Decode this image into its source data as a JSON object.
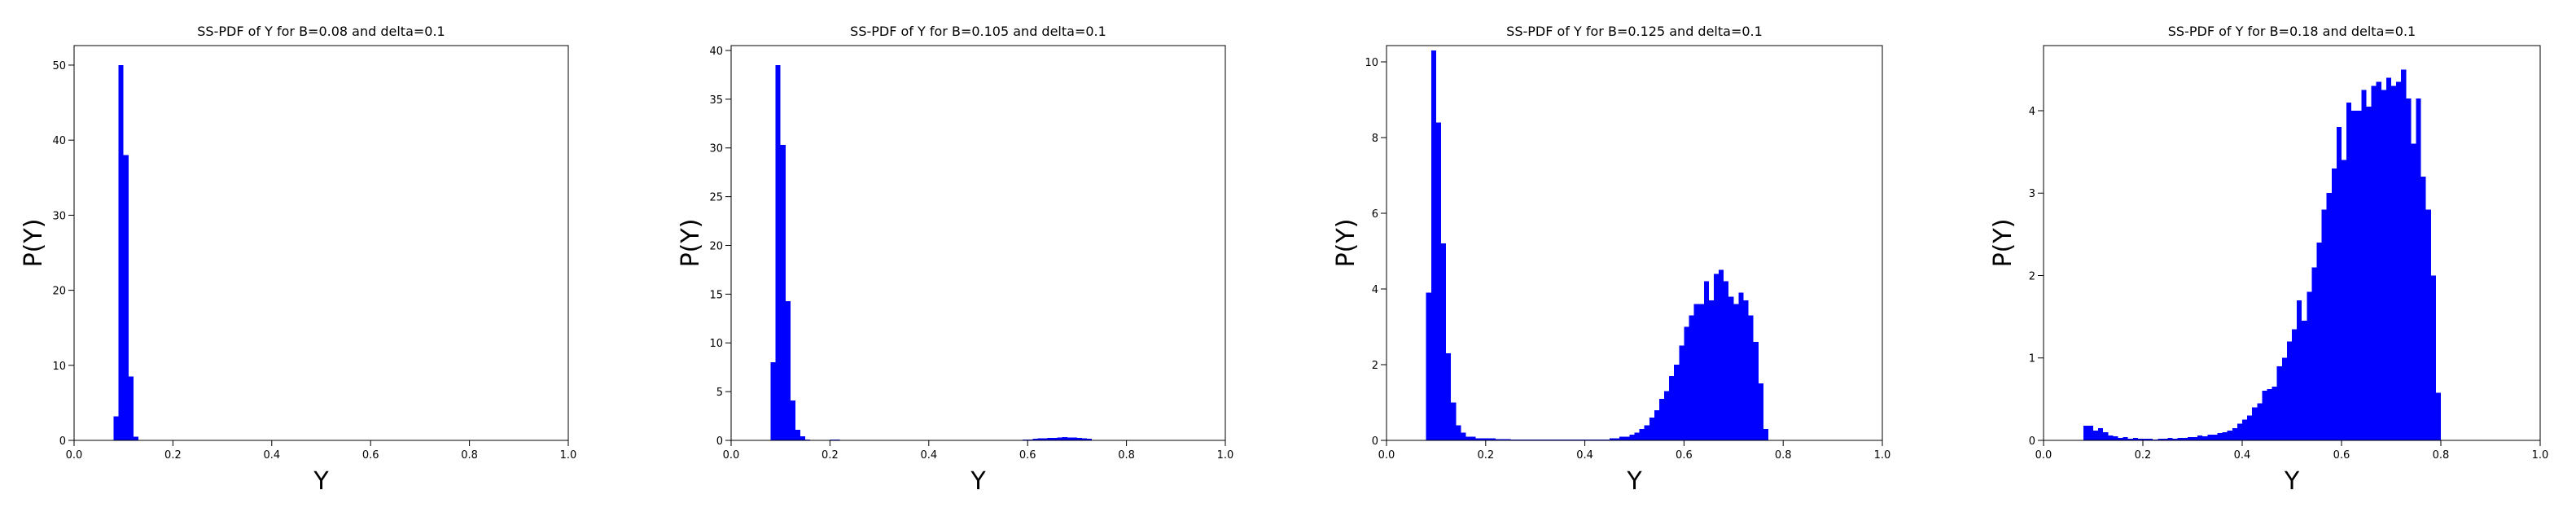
{
  "chart_data": [
    {
      "type": "histogram",
      "title": "SS-PDF of Y for B=0.08 and delta=0.1",
      "x_label": "Y",
      "y_label": "P(Y)",
      "color": "#0000ff",
      "bins": [
        0.08,
        0.09,
        0.1,
        0.11,
        0.12,
        0.13
      ],
      "values": [
        3.2,
        50,
        38,
        8.5,
        0.5
      ],
      "xlim": [
        0,
        1
      ],
      "xticks": [
        {
          "value": 0,
          "label": "0.0"
        },
        0.2,
        0.4,
        0.6,
        0.8,
        {
          "value": 1,
          "label": "1.0"
        }
      ],
      "ylim": [
        0,
        52.6
      ],
      "yticks": [
        0,
        10,
        20,
        30,
        40,
        50
      ]
    },
    {
      "type": "histogram",
      "title": "SS-PDF of Y for B=0.105 and delta=0.1",
      "x_label": "Y",
      "y_label": "P(Y)",
      "color": "#0000ff",
      "bins": [
        0.08,
        0.09,
        0.1,
        0.11,
        0.12,
        0.13,
        0.14,
        0.15,
        0.16,
        0.17,
        0.18,
        0.19,
        0.2,
        0.21,
        0.22,
        0.23,
        0.24,
        0.25,
        0.26,
        0.27,
        0.28,
        0.29,
        0.3,
        0.31,
        0.32,
        0.33,
        0.34,
        0.35,
        0.36,
        0.37,
        0.38,
        0.39,
        0.4,
        0.41,
        0.42,
        0.43,
        0.44,
        0.45,
        0.46,
        0.47,
        0.48,
        0.49,
        0.5,
        0.51,
        0.52,
        0.53,
        0.54,
        0.55,
        0.56,
        0.57,
        0.58,
        0.59,
        0.6,
        0.61,
        0.62,
        0.63,
        0.64,
        0.65,
        0.66,
        0.67,
        0.68,
        0.69,
        0.7,
        0.71,
        0.72,
        0.73,
        0.74
      ],
      "values": [
        8.0,
        38.5,
        30.3,
        14.3,
        4.1,
        1.1,
        0.4,
        0.1,
        0.05,
        0,
        0,
        0,
        0.1,
        0.1,
        0,
        0,
        0,
        0,
        0,
        0,
        0,
        0,
        0,
        0,
        0,
        0,
        0,
        0,
        0,
        0,
        0,
        0,
        0,
        0,
        0,
        0,
        0,
        0,
        0,
        0,
        0,
        0,
        0,
        0,
        0,
        0,
        0,
        0,
        0,
        0,
        0.05,
        0.1,
        0.1,
        0.15,
        0.2,
        0.2,
        0.25,
        0.25,
        0.3,
        0.35,
        0.3,
        0.3,
        0.25,
        0.2,
        0.15,
        0.05
      ],
      "xlim": [
        0,
        1
      ],
      "xticks": [
        {
          "value": 0,
          "label": "0.0"
        },
        0.2,
        0.4,
        0.6,
        0.8,
        {
          "value": 1,
          "label": "1.0"
        }
      ],
      "ylim": [
        0,
        40.5
      ],
      "yticks": [
        0,
        5,
        10,
        15,
        20,
        25,
        30,
        35,
        40
      ]
    },
    {
      "type": "histogram",
      "title": "SS-PDF of Y for B=0.125 and delta=0.1",
      "x_label": "Y",
      "y_label": "P(Y)",
      "color": "#0000ff",
      "bins": [
        0.08,
        0.09,
        0.1,
        0.11,
        0.12,
        0.13,
        0.14,
        0.15,
        0.16,
        0.17,
        0.18,
        0.19,
        0.2,
        0.21,
        0.22,
        0.23,
        0.24,
        0.25,
        0.26,
        0.27,
        0.28,
        0.29,
        0.3,
        0.31,
        0.32,
        0.33,
        0.34,
        0.35,
        0.36,
        0.37,
        0.38,
        0.39,
        0.4,
        0.41,
        0.42,
        0.43,
        0.44,
        0.45,
        0.46,
        0.47,
        0.48,
        0.49,
        0.5,
        0.51,
        0.52,
        0.53,
        0.54,
        0.55,
        0.56,
        0.57,
        0.58,
        0.59,
        0.6,
        0.61,
        0.62,
        0.63,
        0.64,
        0.65,
        0.66,
        0.67,
        0.68,
        0.69,
        0.7,
        0.71,
        0.72,
        0.73,
        0.74,
        0.75,
        0.76,
        0.77
      ],
      "values": [
        3.9,
        10.3,
        8.4,
        5.2,
        2.3,
        1.0,
        0.4,
        0.2,
        0.1,
        0.1,
        0.05,
        0.05,
        0.05,
        0.05,
        0.03,
        0.03,
        0.03,
        0.02,
        0.02,
        0.02,
        0.02,
        0.02,
        0.02,
        0.02,
        0.02,
        0.02,
        0.02,
        0.02,
        0.02,
        0.02,
        0.02,
        0.02,
        0.02,
        0.02,
        0.02,
        0.02,
        0.02,
        0.05,
        0.05,
        0.1,
        0.1,
        0.15,
        0.2,
        0.3,
        0.4,
        0.6,
        0.8,
        1.1,
        1.3,
        1.7,
        2.0,
        2.5,
        3.0,
        3.3,
        3.6,
        3.6,
        4.2,
        3.7,
        4.4,
        4.5,
        4.2,
        3.8,
        3.6,
        3.9,
        3.7,
        3.3,
        2.6,
        1.5,
        0.3
      ],
      "xlim": [
        0,
        1
      ],
      "xticks": [
        {
          "value": 0,
          "label": "0.0"
        },
        0.2,
        0.4,
        0.6,
        0.8,
        {
          "value": 1,
          "label": "1.0"
        }
      ],
      "ylim": [
        0,
        10.43
      ],
      "yticks": [
        0,
        2,
        4,
        6,
        8,
        10
      ]
    },
    {
      "type": "histogram",
      "title": "SS-PDF of Y for B=0.18 and delta=0.1",
      "x_label": "Y",
      "y_label": "P(Y)",
      "color": "#0000ff",
      "bins": [
        0.08,
        0.09,
        0.1,
        0.11,
        0.12,
        0.13,
        0.14,
        0.15,
        0.16,
        0.17,
        0.18,
        0.19,
        0.2,
        0.21,
        0.22,
        0.23,
        0.24,
        0.25,
        0.26,
        0.27,
        0.28,
        0.29,
        0.3,
        0.31,
        0.32,
        0.33,
        0.34,
        0.35,
        0.36,
        0.37,
        0.38,
        0.39,
        0.4,
        0.41,
        0.42,
        0.43,
        0.44,
        0.45,
        0.46,
        0.47,
        0.48,
        0.49,
        0.5,
        0.51,
        0.52,
        0.53,
        0.54,
        0.55,
        0.56,
        0.57,
        0.58,
        0.59,
        0.6,
        0.61,
        0.62,
        0.63,
        0.64,
        0.65,
        0.66,
        0.67,
        0.68,
        0.69,
        0.7,
        0.71,
        0.72,
        0.73,
        0.74,
        0.75,
        0.76,
        0.77,
        0.78,
        0.79,
        0.8
      ],
      "values": [
        0.18,
        0.18,
        0.12,
        0.15,
        0.1,
        0.06,
        0.05,
        0.03,
        0.04,
        0.02,
        0.03,
        0.02,
        0.02,
        0.02,
        0.01,
        0.02,
        0.02,
        0.03,
        0.02,
        0.03,
        0.03,
        0.04,
        0.04,
        0.06,
        0.05,
        0.07,
        0.07,
        0.09,
        0.1,
        0.12,
        0.15,
        0.2,
        0.25,
        0.3,
        0.4,
        0.45,
        0.6,
        0.62,
        0.65,
        0.9,
        1.0,
        1.2,
        1.35,
        1.7,
        1.45,
        1.8,
        2.1,
        2.4,
        2.8,
        3.0,
        3.3,
        3.8,
        3.4,
        4.1,
        4.0,
        4.0,
        4.25,
        4.05,
        4.3,
        4.35,
        4.25,
        4.4,
        4.3,
        4.35,
        4.5,
        4.15,
        3.6,
        4.15,
        3.2,
        2.8,
        2.0,
        0.58
      ],
      "xlim": [
        0,
        1
      ],
      "xticks": [
        {
          "value": 0,
          "label": "0.0"
        },
        0.2,
        0.4,
        0.6,
        0.8,
        {
          "value": 1,
          "label": "1.0"
        }
      ],
      "ylim": [
        0,
        4.79
      ],
      "yticks": [
        0,
        1,
        2,
        3,
        4
      ]
    }
  ]
}
